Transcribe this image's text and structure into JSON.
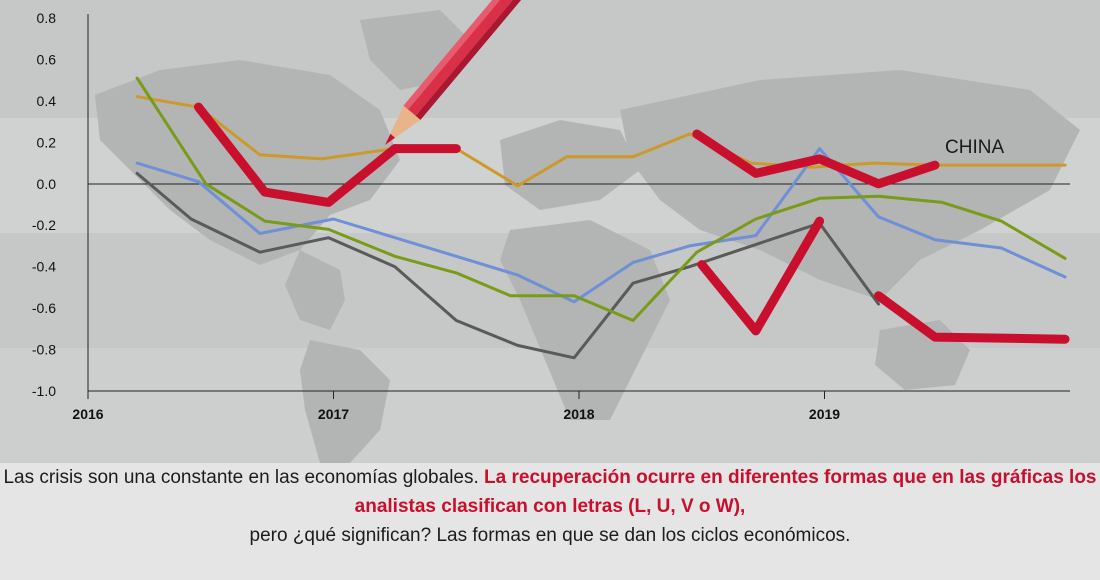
{
  "chart_data": {
    "type": "line",
    "ylim": [
      -1.0,
      0.8
    ],
    "xlim": [
      2016,
      2020
    ],
    "y_ticks": [
      "0.8",
      "0.6",
      "0.4",
      "0.2",
      "0.0",
      "-0.2",
      "-0.4",
      "-0.6",
      "-0.8",
      "-1.0"
    ],
    "y_tick_values": [
      0.8,
      0.6,
      0.4,
      0.2,
      0.0,
      -0.2,
      -0.4,
      -0.6,
      -0.8,
      -1.0
    ],
    "x_ticks": [
      "2016",
      "2017",
      "2018",
      "2019"
    ],
    "x_tick_values": [
      2016,
      2017,
      2018,
      2019
    ],
    "grid": false,
    "annotation": "CHINA",
    "series": [
      {
        "color": "#cc9a2a",
        "width": 3,
        "x": [
          2016.2,
          2016.45,
          2016.7,
          2016.95,
          2017.25,
          2017.5,
          2017.75,
          2017.95,
          2018.22,
          2018.45,
          2018.7,
          2018.95,
          2019.2,
          2019.45,
          2019.7,
          2019.98
        ],
        "y": [
          0.42,
          0.37,
          0.14,
          0.12,
          0.17,
          0.17,
          -0.01,
          0.13,
          0.13,
          0.24,
          0.1,
          0.08,
          0.1,
          0.09,
          0.09,
          0.09
        ]
      },
      {
        "color": "#6f8fd6",
        "width": 3,
        "x": [
          2016.2,
          2016.45,
          2016.7,
          2017.0,
          2017.5,
          2017.75,
          2017.98,
          2018.22,
          2018.45,
          2018.72,
          2018.98,
          2019.22,
          2019.45,
          2019.72,
          2019.98
        ],
        "y": [
          0.1,
          0.01,
          -0.24,
          -0.17,
          -0.35,
          -0.44,
          -0.57,
          -0.38,
          -0.3,
          -0.25,
          0.17,
          -0.16,
          -0.27,
          -0.31,
          -0.45
        ]
      },
      {
        "color": "#5a5a5a",
        "width": 3,
        "x": [
          2016.2,
          2016.42,
          2016.7,
          2016.98,
          2017.25,
          2017.5,
          2017.75,
          2017.98,
          2018.22,
          2018.45,
          2018.98,
          2019.22
        ],
        "y": [
          0.05,
          -0.17,
          -0.33,
          -0.26,
          -0.4,
          -0.66,
          -0.78,
          -0.84,
          -0.48,
          -0.4,
          -0.19,
          -0.58
        ]
      },
      {
        "color": "#7a9a1a",
        "width": 3,
        "x": [
          2016.2,
          2016.48,
          2016.72,
          2016.98,
          2017.25,
          2017.5,
          2017.72,
          2017.98,
          2018.22,
          2018.48,
          2018.72,
          2018.98,
          2019.22,
          2019.48,
          2019.72,
          2019.98
        ],
        "y": [
          0.51,
          0.0,
          -0.18,
          -0.22,
          -0.35,
          -0.43,
          -0.54,
          -0.54,
          -0.66,
          -0.33,
          -0.17,
          -0.07,
          -0.06,
          -0.09,
          -0.18,
          -0.36
        ]
      },
      {
        "color": "#c8102e",
        "width": 9,
        "x": [
          2016.45,
          2016.72,
          2016.98,
          2017.25
        ],
        "y": [
          0.37,
          -0.04,
          -0.09,
          0.17
        ]
      },
      {
        "color": "#c8102e",
        "width": 9,
        "x": [
          2017.25,
          2017.5
        ],
        "y": [
          0.17,
          0.17
        ]
      },
      {
        "color": "#c8102e",
        "width": 9,
        "x": [
          2018.48,
          2018.72,
          2018.98,
          2019.22,
          2019.45
        ],
        "y": [
          0.24,
          0.05,
          0.12,
          0.0,
          0.09
        ]
      },
      {
        "color": "#c8102e",
        "width": 9,
        "x": [
          2018.5,
          2018.72,
          2018.98
        ],
        "y": [
          -0.39,
          -0.71,
          -0.18
        ]
      },
      {
        "color": "#c8102e",
        "width": 9,
        "x": [
          2019.22,
          2019.45,
          2019.98
        ],
        "y": [
          -0.54,
          -0.74,
          -0.75
        ]
      }
    ]
  },
  "caption": {
    "part1": "Las crisis son una constante en las economías globales. ",
    "highlight": "La recuperación ocurre en diferentes formas que en las gráficas los analistas clasifican con letras (L, U, V o W),",
    "part2": " pero ¿qué significan? Las formas en que se dan los ciclos económicos."
  },
  "colors": {
    "accent": "#c8102e",
    "pencil_body": "#d9304a",
    "pencil_wood": "#e8b48a",
    "background": "#c8cac9",
    "caption_bg": "#e4e5e4"
  }
}
